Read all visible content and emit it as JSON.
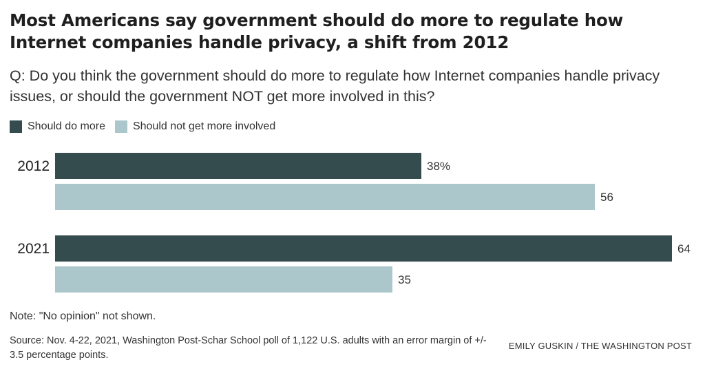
{
  "title": "Most Americans say government should do more to regulate how Internet companies handle privacy, a shift from 2012",
  "question": "Q: Do you think the government should do more to regulate how Internet companies handle privacy issues, or should the government NOT get more involved in this?",
  "legend": [
    {
      "label": "Should do more",
      "color": "#344c4e"
    },
    {
      "label": "Should not get more involved",
      "color": "#abc7cb"
    }
  ],
  "note": "Note: \"No opinion\" not shown.",
  "source": "Source: Nov. 4-22, 2021, Washington Post-Schar School poll of 1,122 U.S. adults with an error margin of +/- 3.5 percentage points.",
  "credit": "EMILY GUSKIN / THE WASHINGTON POST",
  "chart_data": {
    "type": "bar",
    "orientation": "horizontal",
    "categories": [
      "2012",
      "2021"
    ],
    "series": [
      {
        "name": "Should do more",
        "values": [
          38,
          64
        ],
        "labels": [
          "38%",
          "64"
        ],
        "color": "#344c4e"
      },
      {
        "name": "Should not get more involved",
        "values": [
          56,
          35
        ],
        "labels": [
          "56",
          "35"
        ],
        "color": "#abc7cb"
      }
    ],
    "xlim": [
      0,
      64
    ]
  }
}
